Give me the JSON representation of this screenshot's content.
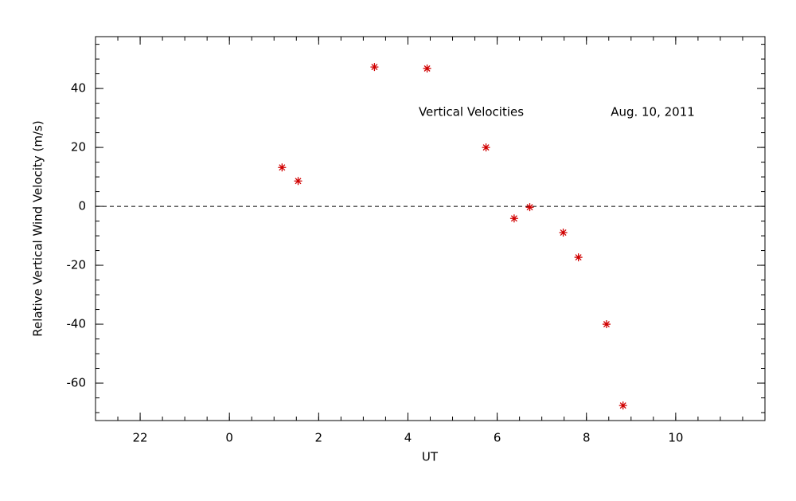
{
  "chart_data": {
    "type": "scatter",
    "xlabel": "UT",
    "ylabel": "Relative Vertical Wind Velocity (m/s)",
    "annotations": [
      "Vertical Velocities",
      "Aug. 10, 2011"
    ],
    "series": [
      {
        "color": "#d00000",
        "x": [
          1.18,
          1.54,
          3.25,
          4.43,
          5.75,
          6.38,
          6.73,
          7.48,
          7.82,
          8.45,
          8.82
        ],
        "values": [
          13.2,
          8.6,
          47.3,
          46.8,
          20,
          -4.1,
          -0.3,
          -8.9,
          -17.3,
          -40,
          -67.6
        ]
      }
    ],
    "xlim": [
      -3,
      12
    ],
    "xticks": [
      {
        "value": -2,
        "label": "22"
      },
      0,
      2,
      4,
      6,
      8,
      10
    ],
    "ylim": [
      -72.7,
      57.6
    ],
    "yticks": [
      -60,
      -40,
      -20,
      0,
      20,
      40
    ],
    "xminor": 4,
    "yminor": 4,
    "reference_line": 0
  }
}
